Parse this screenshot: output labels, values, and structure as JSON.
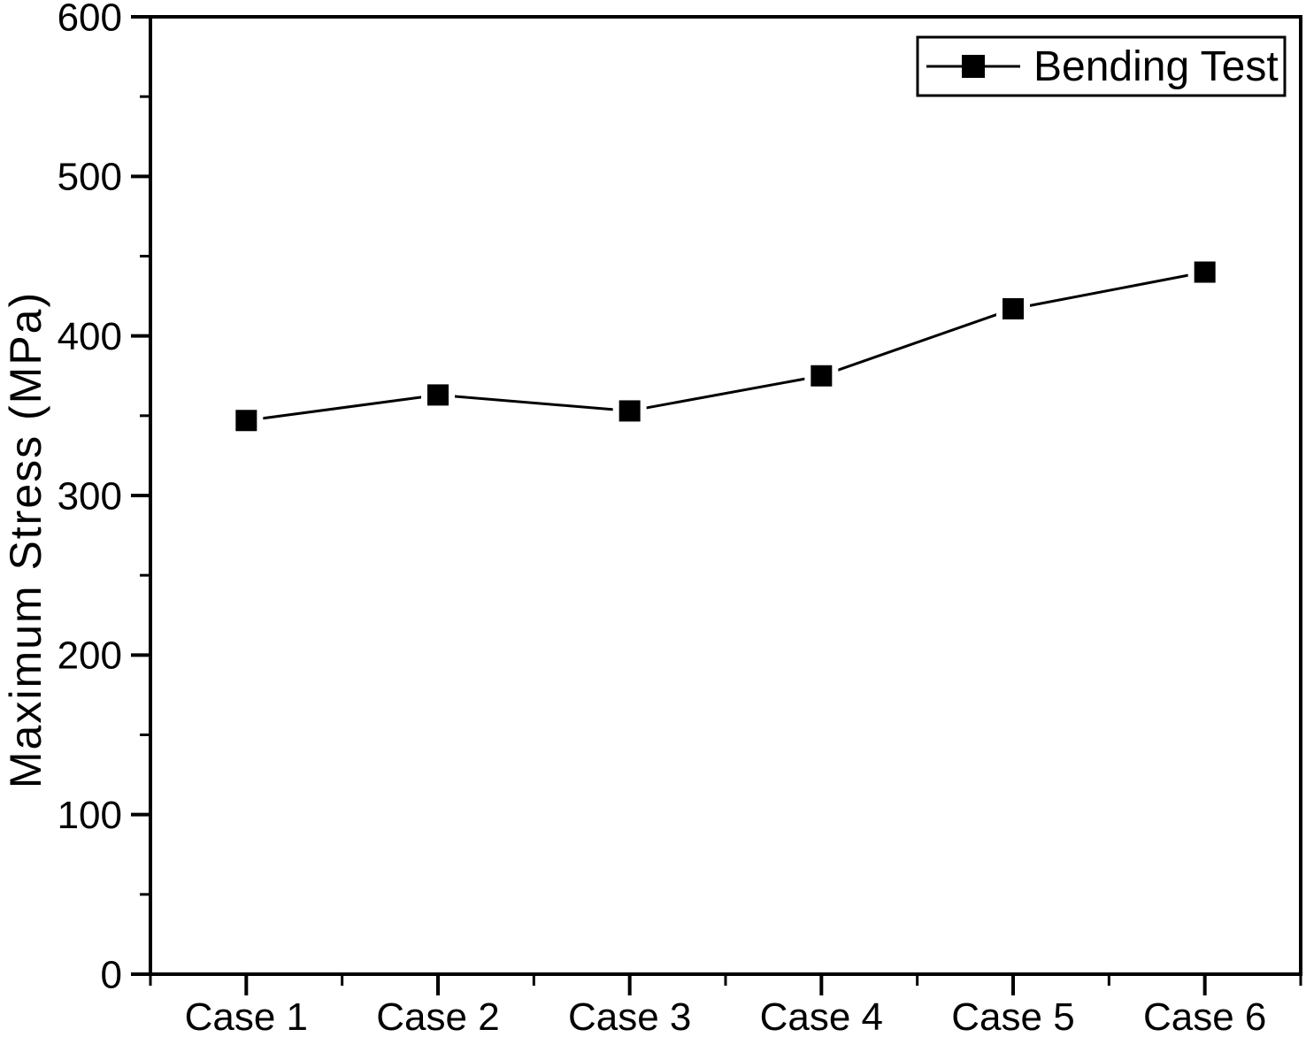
{
  "figure": {
    "background": "#ffffff",
    "foreground": "#000000"
  },
  "chart_data": {
    "type": "line",
    "title": "",
    "categories": [
      "Case 1",
      "Case 2",
      "Case 3",
      "Case 4",
      "Case 5",
      "Case 6"
    ],
    "series": [
      {
        "name": "Bending Test",
        "marker": "filled-square",
        "color": "#000000",
        "values": [
          347,
          363,
          353,
          375,
          417,
          440
        ]
      }
    ],
    "xlabel": "",
    "ylabel": "Maximum Stress (MPa)",
    "ylim": [
      0,
      600
    ],
    "ytick_interval": 100,
    "yminor_interval": 50,
    "ytick_labels": [
      "0",
      "100",
      "200",
      "300",
      "400",
      "500",
      "600"
    ],
    "grid": false,
    "legend": {
      "visible": true,
      "position": "top-right",
      "border": true,
      "entries": [
        "Bending Test"
      ]
    }
  }
}
